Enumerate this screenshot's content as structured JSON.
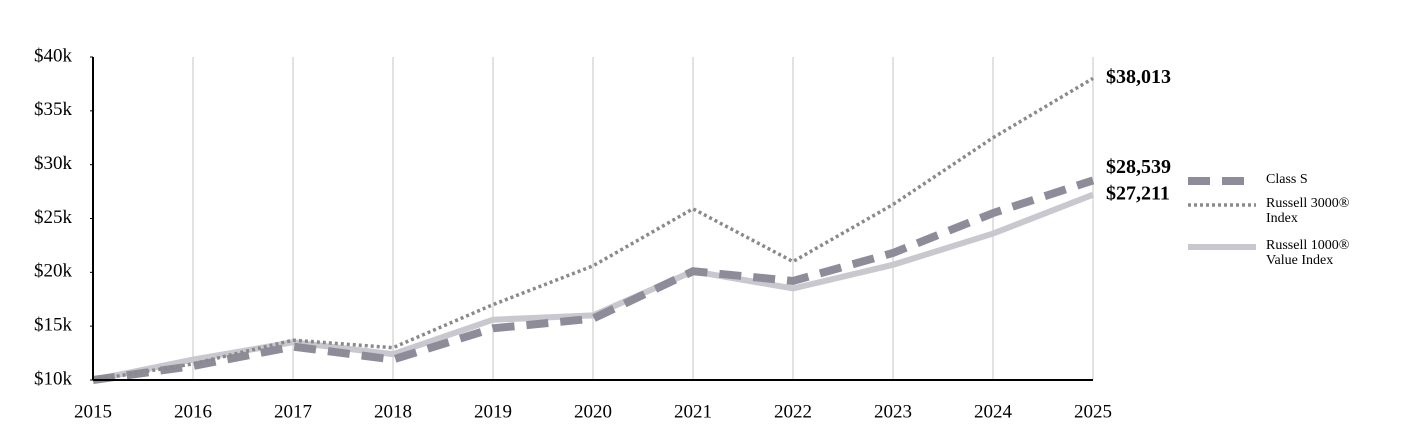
{
  "chart_data": {
    "type": "line",
    "categories": [
      "2015",
      "2016",
      "2017",
      "2018",
      "2019",
      "2020",
      "2021",
      "2022",
      "2023",
      "2024",
      "2025"
    ],
    "series": [
      {
        "name": "Class S",
        "color": "#8e8c99",
        "style": "dashed",
        "values": [
          10000,
          11300,
          13100,
          11900,
          14800,
          15700,
          20100,
          19200,
          21800,
          25500,
          28539
        ],
        "value_labels": [
          null,
          null,
          null,
          null,
          null,
          null,
          null,
          null,
          null,
          null,
          "$28,539"
        ]
      },
      {
        "name": "Russell 3000® Index",
        "color": "#8a8a8a",
        "style": "dotted",
        "values": [
          10000,
          11500,
          13700,
          13000,
          17000,
          20600,
          25900,
          21000,
          26300,
          32500,
          38013
        ],
        "value_labels": [
          null,
          null,
          null,
          null,
          null,
          null,
          null,
          null,
          null,
          null,
          "$38,013"
        ]
      },
      {
        "name": "Russell 1000® Value Index",
        "color": "#c9c8cf",
        "style": "solid",
        "values": [
          10000,
          11900,
          13500,
          12400,
          15600,
          16000,
          20100,
          18500,
          20700,
          23600,
          27211
        ],
        "value_labels": [
          null,
          null,
          null,
          null,
          null,
          null,
          null,
          null,
          null,
          null,
          "$27,211"
        ]
      }
    ],
    "ylim": [
      10000,
      40000
    ],
    "yticks": [
      {
        "value": 10000,
        "label": "$10k"
      },
      {
        "value": 15000,
        "label": "$15k"
      },
      {
        "value": 20000,
        "label": "$20k"
      },
      {
        "value": 25000,
        "label": "$25k"
      },
      {
        "value": 30000,
        "label": "$30k"
      },
      {
        "value": 35000,
        "label": "$35k"
      },
      {
        "value": 40000,
        "label": "$40k"
      }
    ],
    "grid": true,
    "legend": "right"
  }
}
